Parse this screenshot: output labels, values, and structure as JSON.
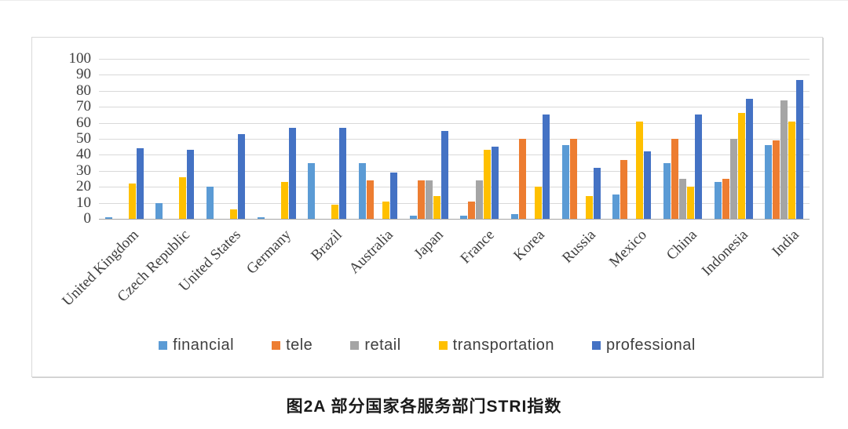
{
  "caption": "图2A 部分国家各服务部门STRI指数",
  "chart_data": {
    "type": "bar",
    "title": "图2A 部分国家各服务部门STRI指数",
    "xlabel": "",
    "ylabel": "",
    "ylim": [
      0,
      100
    ],
    "yticks": [
      0,
      10,
      20,
      30,
      40,
      50,
      60,
      70,
      80,
      90,
      100
    ],
    "grid": true,
    "legend_position": "bottom",
    "categories": [
      "United Kingdom",
      "Czech Republic",
      "United States",
      "Germany",
      "Brazil",
      "Australia",
      "Japan",
      "France",
      "Korea",
      "Russia",
      "Mexico",
      "China",
      "Indonesia",
      "India"
    ],
    "series": [
      {
        "name": "financial",
        "color": "#5B9BD5",
        "values": [
          1,
          10,
          20,
          1,
          35,
          35,
          2,
          2,
          3,
          46,
          15,
          35,
          23,
          46
        ]
      },
      {
        "name": "tele",
        "color": "#ED7D31",
        "values": [
          0,
          0,
          0,
          0,
          0,
          24,
          24,
          11,
          50,
          50,
          37,
          50,
          25,
          49
        ]
      },
      {
        "name": "retail",
        "color": "#A5A5A5",
        "values": [
          0,
          0,
          0,
          0,
          0,
          0,
          24,
          24,
          0,
          0,
          0,
          25,
          50,
          74
        ]
      },
      {
        "name": "transportation",
        "color": "#FFC000",
        "values": [
          22,
          26,
          6,
          23,
          9,
          11,
          14,
          43,
          20,
          14,
          61,
          20,
          66,
          61
        ]
      },
      {
        "name": "professional",
        "color": "#4472C4",
        "values": [
          44,
          43,
          53,
          57,
          57,
          29,
          55,
          45,
          65,
          32,
          42,
          65,
          75,
          87
        ]
      }
    ]
  }
}
